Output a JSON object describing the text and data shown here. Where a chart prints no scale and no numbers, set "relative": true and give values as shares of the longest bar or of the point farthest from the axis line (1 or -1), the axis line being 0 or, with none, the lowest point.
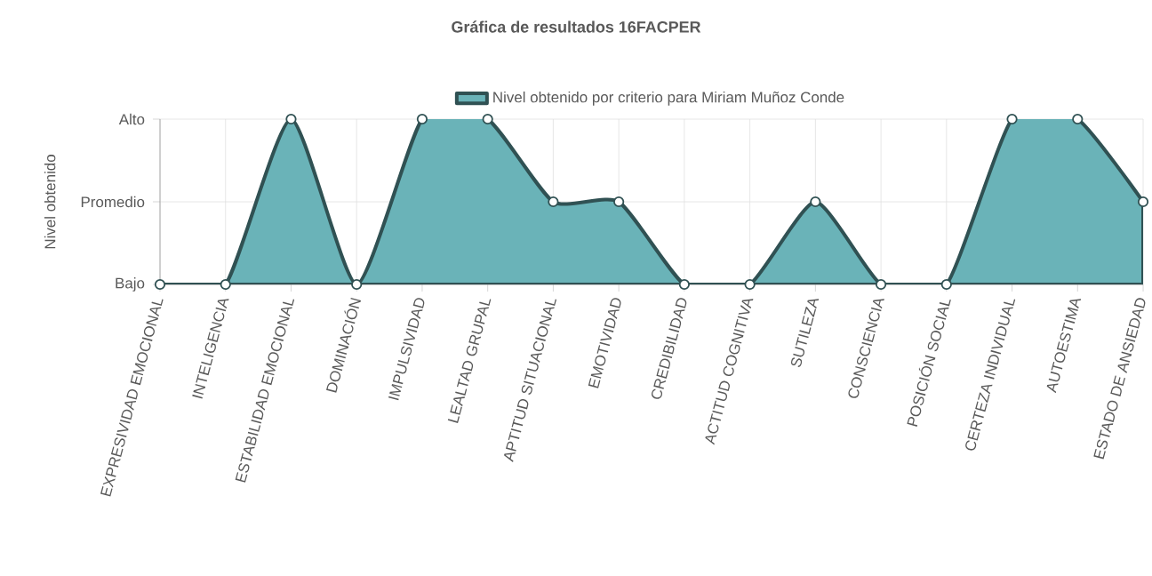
{
  "chart_data": {
    "type": "area",
    "title": "Gráfica de resultados 16FACPER",
    "ylabel": "Nivel obtenido",
    "categories": [
      "EXPRESIVIDAD EMOCIONAL",
      "INTELIGENCIA",
      "ESTABILIDAD EMOCIONAL",
      "DOMINACIÓN",
      "IMPULSIVIDAD",
      "LEALTAD GRUPAL",
      "APTITUD SITUACIONAL",
      "EMOTIVIDAD",
      "CREDIBILIDAD",
      "ACTITUD COGNITIVA",
      "SUTILEZA",
      "CONSCIENCIA",
      "POSICIÓN SOCIAL",
      "CERTEZA INDIVIDUAL",
      "AUTOESTIMA",
      "ESTADO DE ANSIEDAD"
    ],
    "series": [
      {
        "name": "Nivel obtenido por criterio para Miriam Muñoz Conde",
        "color": "#6ab3b8",
        "values": [
          0,
          0,
          1,
          0,
          1,
          1,
          0.5,
          0.5,
          0,
          0,
          0.5,
          0,
          0,
          1,
          1,
          0.5
        ]
      }
    ],
    "relative": true,
    "annotations": [
      "Bajo",
      "Promedio",
      "Alto"
    ],
    "grid": true,
    "legend": "top",
    "marker": "circle",
    "line_style": "solid"
  }
}
